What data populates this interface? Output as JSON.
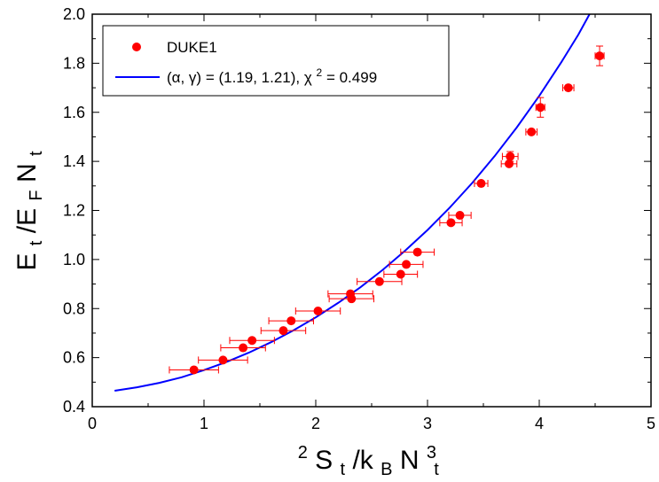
{
  "chart_data": {
    "type": "scatter",
    "xlim": [
      0,
      5
    ],
    "ylim": [
      0.4,
      2.0
    ],
    "x_ticks": [
      "0",
      "1",
      "2",
      "3",
      "4",
      "5"
    ],
    "y_ticks": [
      "0.4",
      "0.6",
      "0.8",
      "1.0",
      "1.2",
      "1.4",
      "1.6",
      "1.8",
      "2.0"
    ],
    "xlabel": {
      "pre_sup": "2",
      "s": "S",
      "s_sub": "t",
      "mid": "/k",
      "mid_sub": "B",
      "n": "N",
      "n_sup": "3",
      "n_sub": "t"
    },
    "ylabel": {
      "e": "E",
      "e_sub": "t",
      "mid": "/E",
      "mid_sub": "F",
      "n": "N",
      "n_sub": "t"
    },
    "grid": false,
    "legend": {
      "position": "top-left",
      "data_label": "DUKE1",
      "fit_label": "(α, γ) = (1.19, 1.21), χ² = 0.499",
      "fit_label_parts": {
        "main": "(α, γ) = (1.19, 1.21), χ",
        "sup": "2",
        "tail": " = 0.499"
      }
    },
    "series": [
      {
        "name": "DUKE1",
        "kind": "points",
        "color": "#ff0000",
        "points": [
          {
            "x": 0.91,
            "y": 0.55,
            "xerr": 0.22,
            "yerr": 0.0
          },
          {
            "x": 1.17,
            "y": 0.59,
            "xerr": 0.22,
            "yerr": 0.0
          },
          {
            "x": 1.35,
            "y": 0.64,
            "xerr": 0.2,
            "yerr": 0.0
          },
          {
            "x": 1.43,
            "y": 0.67,
            "xerr": 0.2,
            "yerr": 0.0
          },
          {
            "x": 1.71,
            "y": 0.71,
            "xerr": 0.2,
            "yerr": 0.0
          },
          {
            "x": 1.78,
            "y": 0.75,
            "xerr": 0.2,
            "yerr": 0.0
          },
          {
            "x": 2.02,
            "y": 0.79,
            "xerr": 0.2,
            "yerr": 0.0
          },
          {
            "x": 2.31,
            "y": 0.86,
            "xerr": 0.2,
            "yerr": 0.0
          },
          {
            "x": 2.32,
            "y": 0.84,
            "xerr": 0.2,
            "yerr": 0.0
          },
          {
            "x": 2.57,
            "y": 0.91,
            "xerr": 0.2,
            "yerr": 0.0
          },
          {
            "x": 2.76,
            "y": 0.94,
            "xerr": 0.15,
            "yerr": 0.0
          },
          {
            "x": 2.81,
            "y": 0.98,
            "xerr": 0.15,
            "yerr": 0.0
          },
          {
            "x": 2.91,
            "y": 1.03,
            "xerr": 0.15,
            "yerr": 0.0
          },
          {
            "x": 3.21,
            "y": 1.15,
            "xerr": 0.1,
            "yerr": 0.0
          },
          {
            "x": 3.29,
            "y": 1.18,
            "xerr": 0.1,
            "yerr": 0.0
          },
          {
            "x": 3.48,
            "y": 1.31,
            "xerr": 0.06,
            "yerr": 0.0
          },
          {
            "x": 3.73,
            "y": 1.39,
            "xerr": 0.07,
            "yerr": 0.0
          },
          {
            "x": 3.74,
            "y": 1.42,
            "xerr": 0.07,
            "yerr": 0.02
          },
          {
            "x": 3.93,
            "y": 1.52,
            "xerr": 0.05,
            "yerr": 0.0
          },
          {
            "x": 4.01,
            "y": 1.62,
            "xerr": 0.04,
            "yerr": 0.04
          },
          {
            "x": 4.26,
            "y": 1.7,
            "xerr": 0.05,
            "yerr": 0.0
          },
          {
            "x": 4.54,
            "y": 1.83,
            "xerr": 0.04,
            "yerr": 0.04
          }
        ]
      },
      {
        "name": "(α, γ) = (1.19, 1.21), χ² = 0.499",
        "kind": "curve",
        "color": "#0000ff",
        "points": [
          {
            "x": 0.2,
            "y": 0.465
          },
          {
            "x": 0.4,
            "y": 0.479
          },
          {
            "x": 0.6,
            "y": 0.497
          },
          {
            "x": 0.8,
            "y": 0.52
          },
          {
            "x": 1.0,
            "y": 0.549
          },
          {
            "x": 1.2,
            "y": 0.582
          },
          {
            "x": 1.4,
            "y": 0.62
          },
          {
            "x": 1.6,
            "y": 0.663
          },
          {
            "x": 1.8,
            "y": 0.711
          },
          {
            "x": 2.0,
            "y": 0.764
          },
          {
            "x": 2.2,
            "y": 0.823
          },
          {
            "x": 2.4,
            "y": 0.887
          },
          {
            "x": 2.6,
            "y": 0.958
          },
          {
            "x": 2.8,
            "y": 1.036
          },
          {
            "x": 3.0,
            "y": 1.12
          },
          {
            "x": 3.2,
            "y": 1.212
          },
          {
            "x": 3.4,
            "y": 1.312
          },
          {
            "x": 3.6,
            "y": 1.421
          },
          {
            "x": 3.8,
            "y": 1.539
          },
          {
            "x": 4.0,
            "y": 1.667
          },
          {
            "x": 4.2,
            "y": 1.806
          },
          {
            "x": 4.35,
            "y": 1.917
          },
          {
            "x": 4.45,
            "y": 2.0
          }
        ]
      }
    ]
  }
}
